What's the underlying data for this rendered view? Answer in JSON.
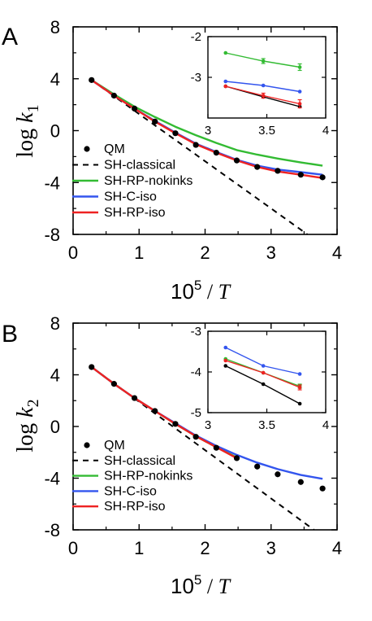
{
  "chart_data": [
    {
      "type": "line",
      "panel_label": "A",
      "ylabel_base": "log ",
      "ylabel_var": "k",
      "ylabel_sub": "1",
      "xlabel_prefix": "10",
      "xlabel_sup": "5",
      "xlabel_suffix": " / ",
      "xlabel_var": "T",
      "xlim": [
        0,
        4
      ],
      "ylim": [
        -8,
        8
      ],
      "xticks": [
        "0",
        "1",
        "2",
        "3",
        "4"
      ],
      "yticks": [
        "8",
        "4",
        "0",
        "-4",
        "-8"
      ],
      "grid": false,
      "legend_position": "bottom-left",
      "series": [
        {
          "name": "QM",
          "style": "points",
          "color": "#000000",
          "x": [
            0.28,
            0.62,
            0.93,
            1.24,
            1.55,
            1.86,
            2.17,
            2.48,
            2.79,
            3.1,
            3.45,
            3.78
          ],
          "y": [
            3.9,
            2.7,
            1.7,
            0.7,
            -0.2,
            -1.1,
            -1.7,
            -2.3,
            -2.8,
            -3.1,
            -3.4,
            -3.6
          ]
        },
        {
          "name": "SH-classical",
          "style": "dashed",
          "color": "#000000",
          "x": [
            0.28,
            3.55
          ],
          "y": [
            3.9,
            -8
          ]
        },
        {
          "name": "SH-RP-nokinks",
          "style": "line",
          "color": "#33bb33",
          "x": [
            0.28,
            0.62,
            0.93,
            1.24,
            1.55,
            1.86,
            2.17,
            2.48,
            2.79,
            3.1,
            3.45,
            3.78
          ],
          "y": [
            3.9,
            2.8,
            1.85,
            1.05,
            0.3,
            -0.35,
            -0.95,
            -1.5,
            -1.85,
            -2.15,
            -2.45,
            -2.7
          ]
        },
        {
          "name": "SH-C-iso",
          "style": "line",
          "color": "#3355ee",
          "x": [
            0.28,
            0.62,
            0.93,
            1.24,
            1.55,
            1.86,
            2.17,
            2.48,
            2.79,
            3.1,
            3.45,
            3.78
          ],
          "y": [
            3.9,
            2.7,
            1.7,
            0.75,
            -0.15,
            -1.0,
            -1.65,
            -2.25,
            -2.7,
            -3.0,
            -3.2,
            -3.4
          ]
        },
        {
          "name": "SH-RP-iso",
          "style": "line",
          "color": "#ee2222",
          "x": [
            0.28,
            0.62,
            0.93,
            1.24,
            1.55,
            1.86,
            2.17,
            2.48,
            2.79,
            3.1,
            3.45,
            3.78
          ],
          "y": [
            3.9,
            2.7,
            1.7,
            0.7,
            -0.2,
            -1.05,
            -1.7,
            -2.3,
            -2.8,
            -3.15,
            -3.4,
            -3.65
          ]
        }
      ],
      "inset": {
        "xlim": [
          3,
          4
        ],
        "ylim": [
          -4,
          -2
        ],
        "xticks": [
          "3",
          "3.5",
          "4"
        ],
        "yticks": [
          "-2",
          "-3"
        ],
        "series": [
          {
            "name": "SH-RP-nokinks",
            "color": "#33bb33",
            "x": [
              3.15,
              3.47,
              3.78
            ],
            "y": [
              -2.4,
              -2.6,
              -2.75
            ],
            "err": [
              0,
              0.06,
              0.08
            ]
          },
          {
            "name": "SH-C-iso",
            "color": "#3355ee",
            "x": [
              3.15,
              3.47,
              3.78
            ],
            "y": [
              -3.1,
              -3.2,
              -3.35
            ],
            "err": [
              0,
              0,
              0
            ]
          },
          {
            "name": "QM",
            "color": "#000000",
            "x": [
              3.15,
              3.47,
              3.78
            ],
            "y": [
              -3.22,
              -3.48,
              -3.72
            ],
            "err": [
              0,
              0,
              0
            ]
          },
          {
            "name": "SH-RP-iso",
            "color": "#ee2222",
            "x": [
              3.15,
              3.47,
              3.78
            ],
            "y": [
              -3.22,
              -3.45,
              -3.65
            ],
            "err": [
              0,
              0.06,
              0.1
            ]
          }
        ]
      }
    },
    {
      "type": "line",
      "panel_label": "B",
      "ylabel_base": "log ",
      "ylabel_var": "k",
      "ylabel_sub": "2",
      "xlabel_prefix": "10",
      "xlabel_sup": "5",
      "xlabel_suffix": " / ",
      "xlabel_var": "T",
      "xlim": [
        0,
        4
      ],
      "ylim": [
        -8,
        8
      ],
      "xticks": [
        "0",
        "1",
        "2",
        "3",
        "4"
      ],
      "yticks": [
        "8",
        "4",
        "0",
        "-4",
        "-8"
      ],
      "grid": false,
      "legend_position": "bottom-left",
      "series": [
        {
          "name": "QM",
          "style": "points",
          "color": "#000000",
          "x": [
            0.28,
            0.62,
            0.93,
            1.24,
            1.55,
            1.86,
            2.17,
            2.48,
            2.79,
            3.1,
            3.45,
            3.78
          ],
          "y": [
            4.6,
            3.3,
            2.2,
            1.2,
            0.2,
            -0.8,
            -1.65,
            -2.45,
            -3.1,
            -3.7,
            -4.3,
            -4.8
          ]
        },
        {
          "name": "SH-classical",
          "style": "dashed",
          "color": "#000000",
          "x": [
            0.28,
            3.65
          ],
          "y": [
            4.6,
            -8
          ]
        },
        {
          "name": "SH-RP-nokinks",
          "style": "line",
          "color": "#33bb33",
          "x": [
            0.28,
            0.62,
            0.93,
            1.24,
            1.55,
            1.86,
            2.17,
            2.48
          ],
          "y": [
            4.6,
            3.3,
            2.2,
            1.2,
            0.2,
            -0.75,
            -1.6,
            -2.4
          ]
        },
        {
          "name": "SH-C-iso",
          "style": "line",
          "color": "#3355ee",
          "x": [
            0.28,
            0.62,
            0.93,
            1.24,
            1.55,
            1.86,
            2.17,
            2.48,
            2.79,
            3.1,
            3.45,
            3.78
          ],
          "y": [
            4.6,
            3.3,
            2.2,
            1.2,
            0.25,
            -0.7,
            -1.5,
            -2.2,
            -2.8,
            -3.3,
            -3.75,
            -4.05
          ]
        },
        {
          "name": "SH-RP-iso",
          "style": "line",
          "color": "#ee2222",
          "x": [
            0.28,
            0.62,
            0.93,
            1.24,
            1.55,
            1.86,
            2.17,
            2.48
          ],
          "y": [
            4.6,
            3.3,
            2.2,
            1.2,
            0.2,
            -0.75,
            -1.6,
            -2.45
          ]
        }
      ],
      "inset": {
        "xlim": [
          3,
          4
        ],
        "ylim": [
          -5,
          -3
        ],
        "xticks": [
          "3",
          "3.5",
          "4"
        ],
        "yticks": [
          "-3",
          "-4",
          "-5"
        ],
        "series": [
          {
            "name": "SH-C-iso",
            "color": "#3355ee",
            "x": [
              3.15,
              3.47,
              3.78
            ],
            "y": [
              -3.4,
              -3.85,
              -4.05
            ],
            "err": [
              0,
              0,
              0
            ]
          },
          {
            "name": "SH-RP-nokinks",
            "color": "#33bb33",
            "x": [
              3.15,
              3.47,
              3.78
            ],
            "y": [
              -3.68,
              -4.02,
              -4.35
            ],
            "err": [
              0,
              0,
              0.05
            ]
          },
          {
            "name": "SH-RP-iso",
            "color": "#ee2222",
            "x": [
              3.15,
              3.47,
              3.78
            ],
            "y": [
              -3.72,
              -4.02,
              -4.38
            ],
            "err": [
              0,
              0,
              0.06
            ]
          },
          {
            "name": "QM",
            "color": "#000000",
            "x": [
              3.15,
              3.47,
              3.78
            ],
            "y": [
              -3.85,
              -4.3,
              -4.78
            ],
            "err": [
              0,
              0,
              0
            ]
          }
        ]
      }
    }
  ]
}
